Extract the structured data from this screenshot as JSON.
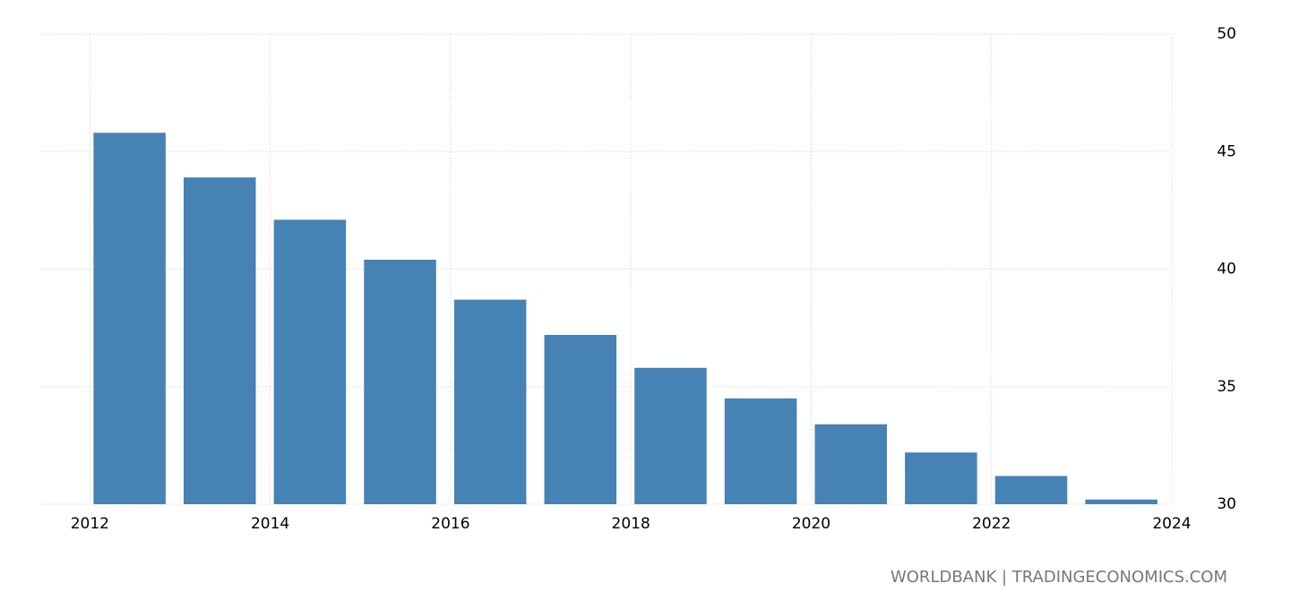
{
  "chart_data": {
    "type": "bar",
    "x": [
      2012,
      2013,
      2014,
      2015,
      2016,
      2017,
      2018,
      2019,
      2020,
      2021,
      2022,
      2023
    ],
    "values": [
      45.8,
      43.9,
      42.1,
      40.4,
      38.7,
      37.2,
      35.8,
      34.5,
      33.4,
      32.2,
      31.2,
      30.2
    ],
    "color": "#4682b4",
    "xlim": [
      2011.45,
      2024
    ],
    "xticks": [
      2012,
      2014,
      2016,
      2018,
      2020,
      2022,
      2024
    ],
    "ylim": [
      30,
      50
    ],
    "yticks": [
      30,
      35,
      40,
      45,
      50
    ],
    "grid": true,
    "source": "WORLDBANK | TRADINGECONOMICS.COM"
  }
}
